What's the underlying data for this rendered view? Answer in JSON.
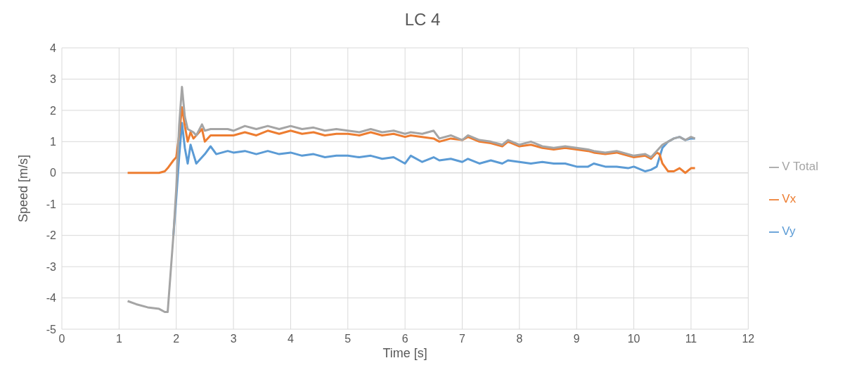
{
  "chart_data": {
    "type": "line",
    "title": "LC 4",
    "xlabel": "Time [s]",
    "ylabel": "Speed [m/s]",
    "x": [
      1.15,
      1.3,
      1.5,
      1.7,
      1.8,
      1.85,
      1.95,
      2.0,
      2.05,
      2.1,
      2.15,
      2.2,
      2.25,
      2.3,
      2.35,
      2.45,
      2.5,
      2.6,
      2.7,
      2.9,
      3.0,
      3.2,
      3.4,
      3.6,
      3.8,
      4.0,
      4.2,
      4.4,
      4.6,
      4.8,
      5.0,
      5.2,
      5.4,
      5.6,
      5.8,
      6.0,
      6.1,
      6.3,
      6.5,
      6.6,
      6.8,
      7.0,
      7.1,
      7.3,
      7.5,
      7.7,
      7.8,
      8.0,
      8.2,
      8.4,
      8.6,
      8.8,
      9.0,
      9.2,
      9.3,
      9.5,
      9.7,
      9.9,
      10.0,
      10.2,
      10.3,
      10.4,
      10.45,
      10.5,
      10.6,
      10.7,
      10.8,
      10.9,
      11.0,
      11.07
    ],
    "series": [
      {
        "name": "Vy",
        "color": "#5b9bd5",
        "values": [
          null,
          null,
          null,
          null,
          null,
          null,
          -2.0,
          -0.8,
          0.5,
          1.6,
          0.8,
          0.3,
          0.9,
          0.6,
          0.3,
          0.5,
          0.6,
          0.85,
          0.6,
          0.7,
          0.65,
          0.7,
          0.6,
          0.7,
          0.6,
          0.65,
          0.55,
          0.6,
          0.5,
          0.55,
          0.55,
          0.5,
          0.55,
          0.45,
          0.5,
          0.3,
          0.55,
          0.35,
          0.5,
          0.4,
          0.45,
          0.35,
          0.45,
          0.3,
          0.4,
          0.3,
          0.4,
          0.35,
          0.3,
          0.35,
          0.3,
          0.3,
          0.2,
          0.2,
          0.3,
          0.2,
          0.2,
          0.15,
          0.2,
          0.05,
          0.1,
          0.2,
          0.5,
          0.8,
          1.0,
          1.1,
          1.15,
          1.05,
          1.1,
          1.1
        ]
      },
      {
        "name": "Vx",
        "color": "#ed7d31",
        "values": [
          0,
          0,
          0,
          0,
          0.05,
          0.15,
          0.4,
          0.5,
          1.2,
          2.1,
          1.5,
          1.0,
          1.3,
          1.1,
          1.2,
          1.4,
          1.0,
          1.2,
          1.2,
          1.2,
          1.2,
          1.3,
          1.2,
          1.35,
          1.25,
          1.35,
          1.25,
          1.3,
          1.2,
          1.25,
          1.25,
          1.2,
          1.3,
          1.2,
          1.25,
          1.15,
          1.2,
          1.15,
          1.1,
          1.0,
          1.1,
          1.05,
          1.15,
          1.0,
          0.95,
          0.85,
          1.0,
          0.85,
          0.9,
          0.8,
          0.75,
          0.8,
          0.75,
          0.7,
          0.65,
          0.6,
          0.65,
          0.55,
          0.5,
          0.55,
          0.45,
          0.65,
          0.6,
          0.3,
          0.05,
          0.05,
          0.15,
          0.0,
          0.15,
          0.15
        ]
      },
      {
        "name": "V Total",
        "color": "#a5a5a5",
        "values": [
          -4.1,
          -4.2,
          -4.3,
          -4.35,
          -4.45,
          -4.45,
          -2.0,
          -0.5,
          1.5,
          2.75,
          1.8,
          1.4,
          1.35,
          1.3,
          1.2,
          1.55,
          1.35,
          1.4,
          1.4,
          1.4,
          1.35,
          1.5,
          1.4,
          1.5,
          1.4,
          1.5,
          1.4,
          1.45,
          1.35,
          1.4,
          1.35,
          1.3,
          1.4,
          1.3,
          1.35,
          1.25,
          1.3,
          1.25,
          1.35,
          1.1,
          1.2,
          1.05,
          1.2,
          1.05,
          1.0,
          0.9,
          1.05,
          0.9,
          1.0,
          0.85,
          0.8,
          0.85,
          0.8,
          0.75,
          0.7,
          0.65,
          0.7,
          0.6,
          0.55,
          0.6,
          0.5,
          0.7,
          0.8,
          0.9,
          1.0,
          1.1,
          1.15,
          1.05,
          1.15,
          1.1
        ]
      }
    ],
    "xlim": [
      0,
      12
    ],
    "xticks": [
      0,
      1,
      2,
      3,
      4,
      5,
      6,
      7,
      8,
      9,
      10,
      11,
      12
    ],
    "ylim": [
      -5,
      4
    ],
    "yticks": [
      -5,
      -4,
      -3,
      -2,
      -1,
      0,
      1,
      2,
      3,
      4
    ],
    "grid": true,
    "legend": "right",
    "marker": "none",
    "line_style": "solid"
  }
}
